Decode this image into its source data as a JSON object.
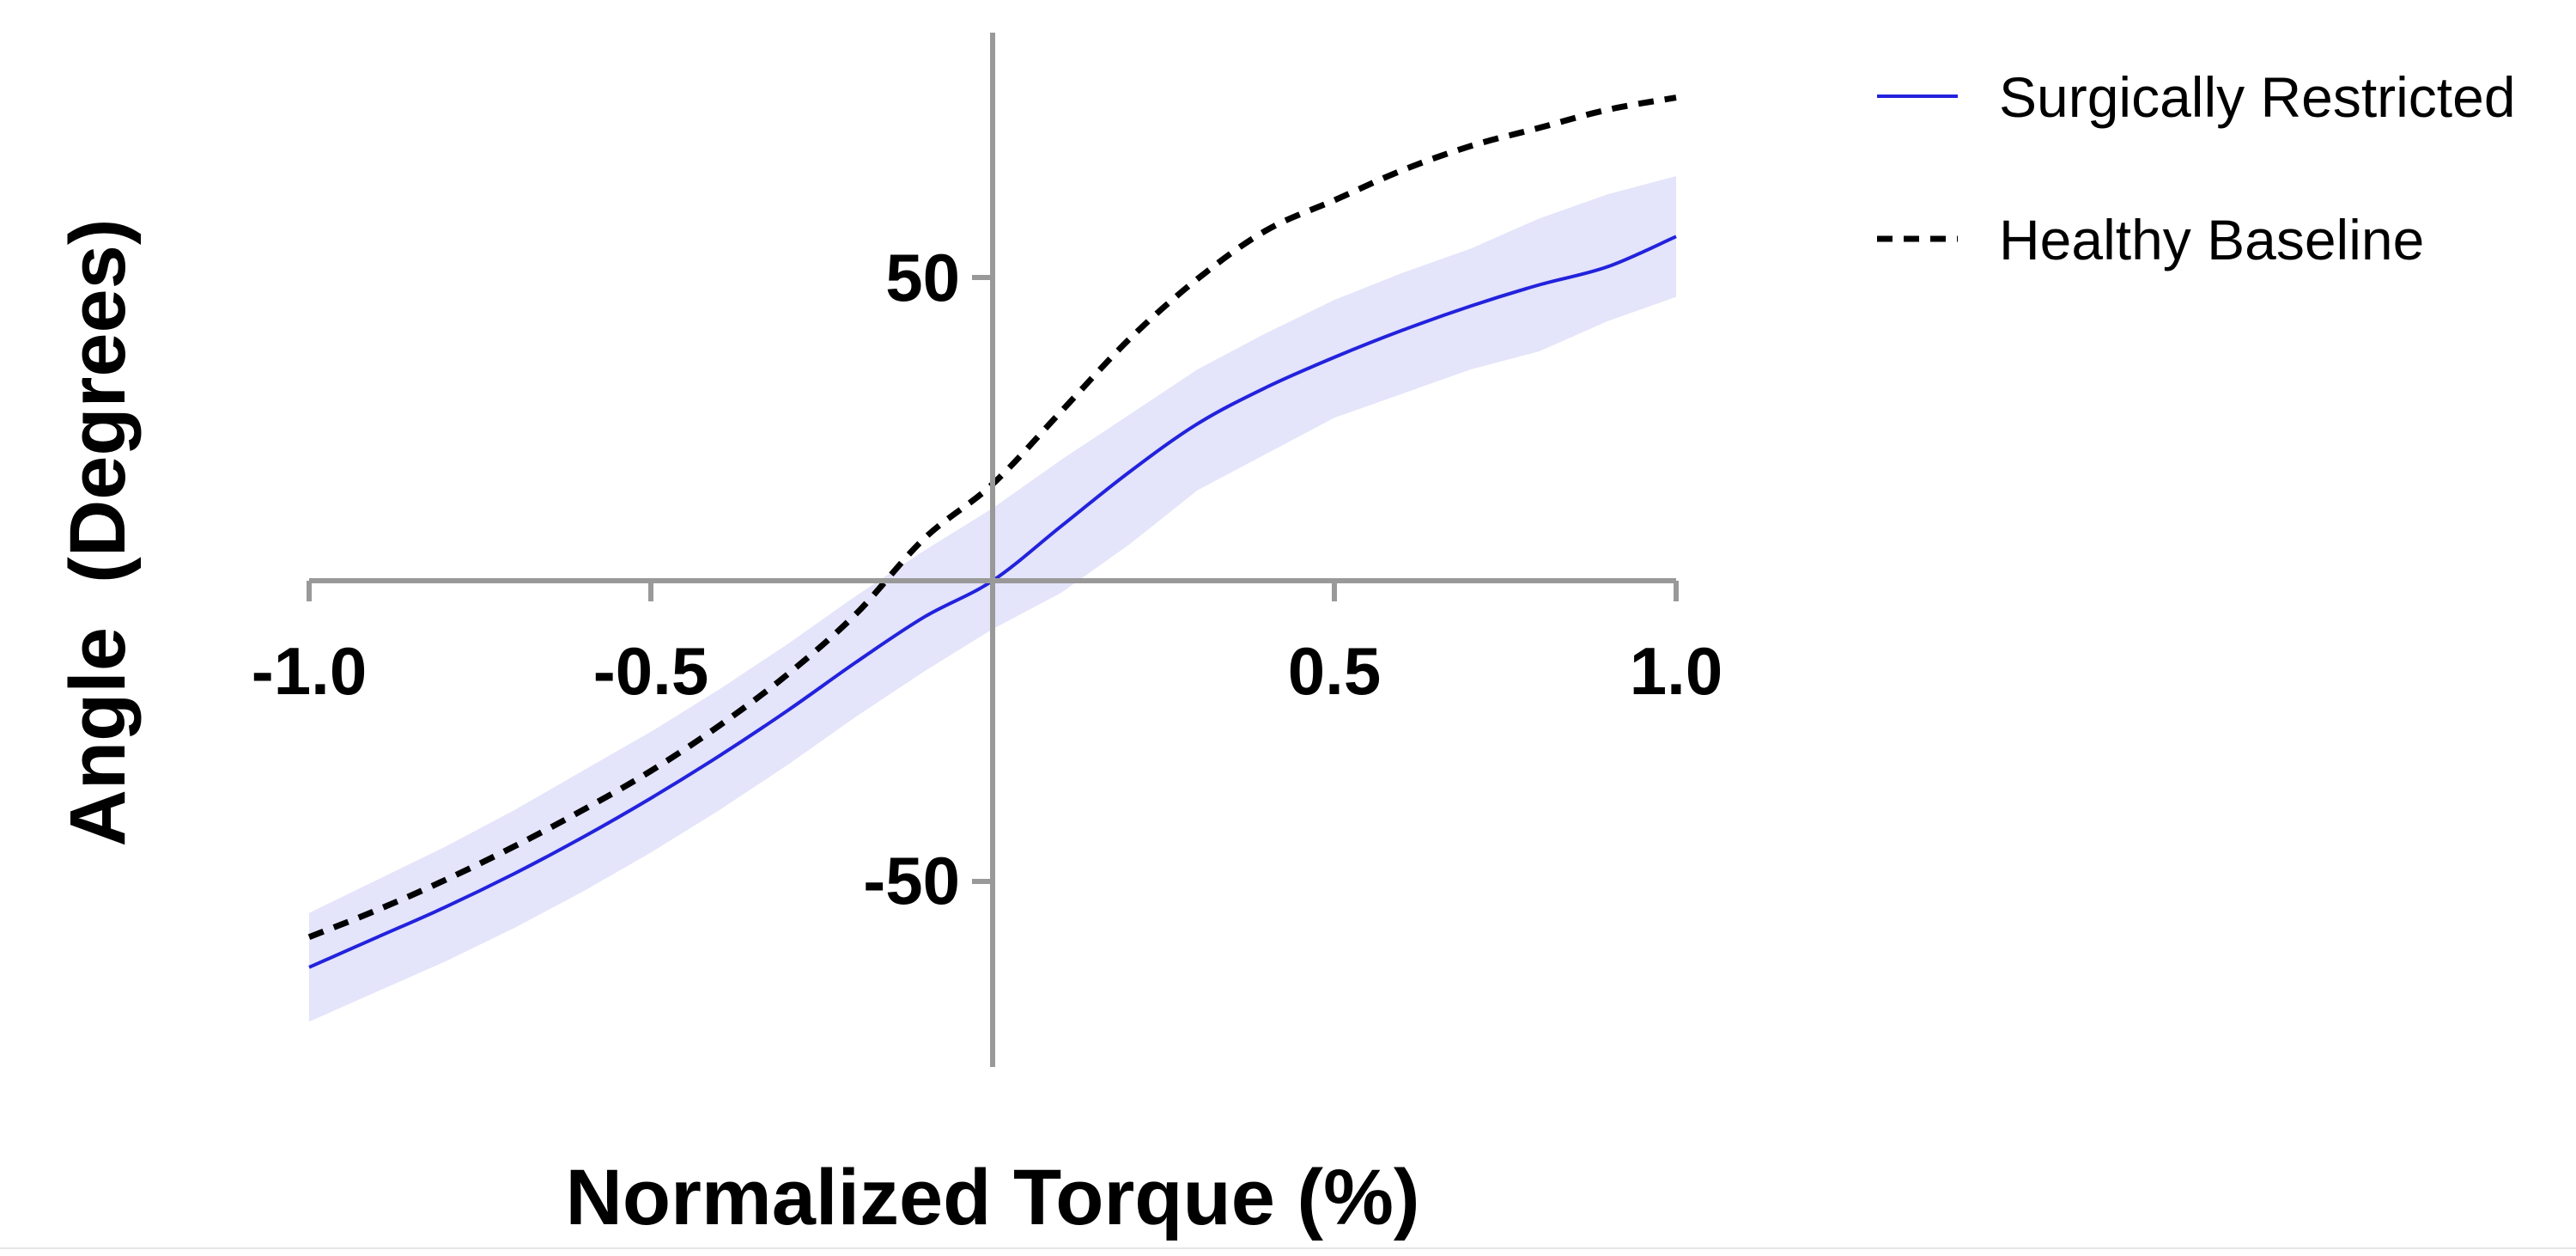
{
  "chart_data": {
    "type": "line",
    "title": "",
    "xlabel": "Normalized Torque (%)",
    "ylabel": "Angle  (Degrees)",
    "xlim": [
      -1.0,
      1.0
    ],
    "ylim": [
      -80,
      90
    ],
    "x_ticks": [
      -1.0,
      -0.5,
      0.5,
      1.0
    ],
    "x_tick_labels": [
      "-1.0",
      "-0.5",
      "0.5",
      "1.0"
    ],
    "y_ticks": [
      -50,
      50
    ],
    "y_tick_labels": [
      "-50",
      "50"
    ],
    "grid": false,
    "legend_position": "top-right",
    "x": [
      -1.0,
      -0.9,
      -0.8,
      -0.7,
      -0.6,
      -0.5,
      -0.4,
      -0.3,
      -0.2,
      -0.1,
      0.0,
      0.1,
      0.2,
      0.3,
      0.4,
      0.5,
      0.6,
      0.7,
      0.8,
      0.9,
      1.0
    ],
    "series": [
      {
        "name": "Surgically Restricted",
        "style": "solid",
        "color": "#2222dd",
        "band_color": "#e4e4fa",
        "values": [
          -64,
          -59,
          -54,
          -48.5,
          -42.5,
          -36,
          -29,
          -21.5,
          -13.5,
          -6,
          0,
          9,
          18,
          26,
          32,
          37,
          41.5,
          45.5,
          49,
          52,
          57
        ],
        "upper": [
          -55,
          -49.5,
          -44,
          -38,
          -31.5,
          -25,
          -18,
          -10.5,
          -2.5,
          5,
          12,
          20,
          27.5,
          35,
          41,
          46.5,
          51,
          55,
          60,
          64,
          67
        ],
        "lower": [
          -73,
          -68,
          -63,
          -57.5,
          -51.5,
          -45,
          -38,
          -30.5,
          -22.5,
          -15,
          -8,
          -2,
          6,
          15,
          21,
          27,
          31,
          35,
          38,
          43,
          47
        ]
      },
      {
        "name": "Healthy Baseline",
        "style": "dashed",
        "color": "#000000",
        "values": [
          -59,
          -54.5,
          -49.5,
          -44,
          -38,
          -31.5,
          -24,
          -15.5,
          -5.5,
          7,
          16,
          28,
          40,
          50,
          58,
          63,
          68,
          72,
          75,
          78,
          80
        ]
      }
    ]
  }
}
